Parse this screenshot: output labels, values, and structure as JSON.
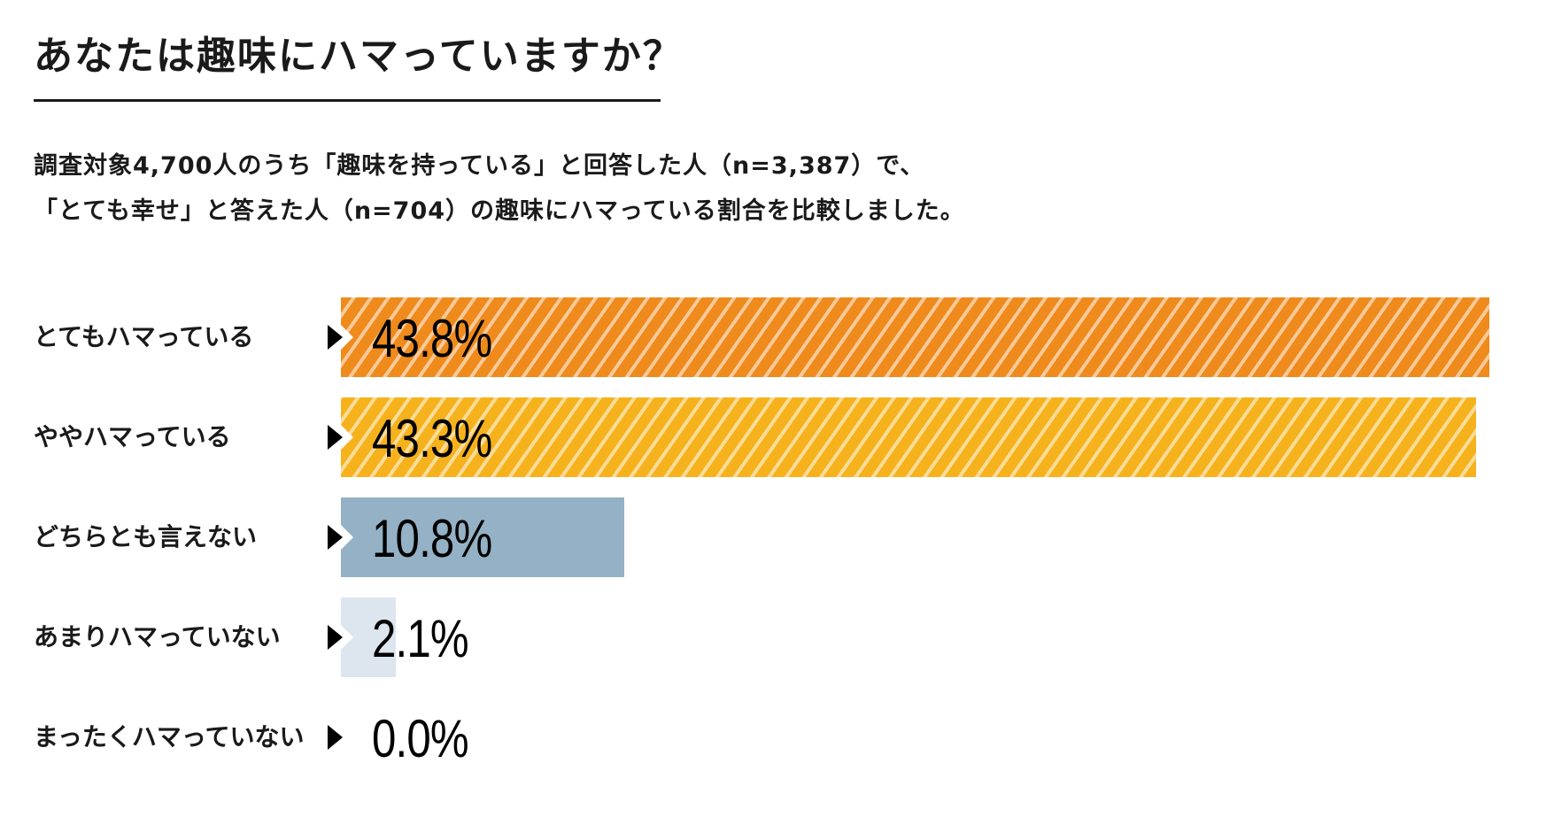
{
  "title": "あなたは趣味にハマっていますか？",
  "description": {
    "line1": "調査対象4,700人のうち「趣味を持っている」と回答した人（n=3,387）で、",
    "line2": "「とても幸せ」と答えた人（n=704）の趣味にハマっている割合を比較しました。"
  },
  "chart_data": {
    "type": "bar",
    "orientation": "horizontal",
    "title": "あなたは趣味にハマっていますか？",
    "categories": [
      "とてもハマっている",
      "ややハマっている",
      "どちらとも言えない",
      "あまりハマっていない",
      "まったくハマっていない"
    ],
    "values": [
      43.8,
      43.3,
      10.8,
      2.1,
      0.0
    ],
    "value_labels": [
      "43.8%",
      "43.3%",
      "10.8%",
      "2.1%",
      "0.0%"
    ],
    "unit": "%",
    "xlim": [
      0,
      44
    ],
    "colors": [
      "#ef8a1c",
      "#f5b21c",
      "#94b1c5",
      "#dde6ee",
      "#ffffff"
    ],
    "striped": [
      true,
      true,
      false,
      false,
      false
    ]
  }
}
